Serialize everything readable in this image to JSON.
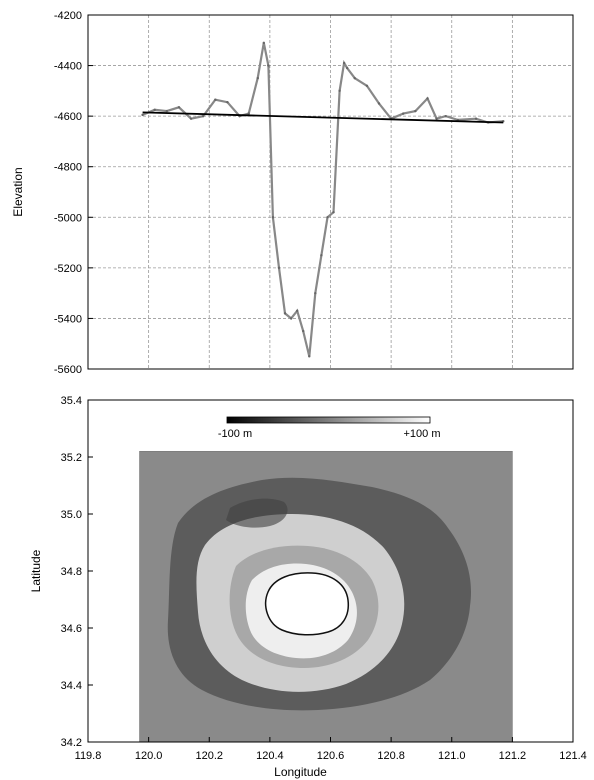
{
  "chart_data": [
    {
      "type": "line",
      "title": "",
      "xlabel": "",
      "ylabel": "Elevation",
      "xlim": [
        119.8,
        121.4
      ],
      "ylim": [
        -5600,
        -4200
      ],
      "xticks": [
        119.8,
        120.0,
        120.2,
        120.4,
        120.6,
        120.8,
        121.0,
        121.2,
        121.4
      ],
      "yticks": [
        -4200,
        -4400,
        -4600,
        -4800,
        -5000,
        -5200,
        -5400,
        -5600
      ],
      "yticklabels": [
        "-4200",
        "-4400",
        "-4600",
        "-4800",
        "-5000",
        "-5200",
        "-5400",
        "-5600"
      ],
      "grid": true,
      "series": [
        {
          "color": "#888888",
          "x": [
            119.98,
            120.02,
            120.06,
            120.1,
            120.14,
            120.18,
            120.22,
            120.26,
            120.3,
            120.33,
            120.36,
            120.38,
            120.395,
            120.41,
            120.43,
            120.45,
            120.47,
            120.49,
            120.51,
            120.53,
            120.55,
            120.57,
            120.59,
            120.61,
            120.63,
            120.645,
            120.655,
            120.68,
            120.72,
            120.76,
            120.8,
            120.84,
            120.88,
            120.92,
            120.95,
            120.98,
            121.02,
            121.08,
            121.12,
            121.17
          ],
          "y": [
            -4595,
            -4575,
            -4580,
            -4565,
            -4610,
            -4600,
            -4535,
            -4545,
            -4600,
            -4590,
            -4450,
            -4310,
            -4400,
            -5000,
            -5200,
            -5380,
            -5400,
            -5370,
            -5450,
            -5550,
            -5300,
            -5150,
            -5000,
            -4980,
            -4500,
            -4390,
            -4410,
            -4450,
            -4480,
            -4550,
            -4610,
            -4590,
            -4580,
            -4530,
            -4610,
            -4600,
            -4615,
            -4610,
            -4625,
            -4620
          ]
        },
        {
          "color": "#000000",
          "x": [
            119.98,
            121.17
          ],
          "y": [
            -4585,
            -4625
          ]
        }
      ]
    },
    {
      "type": "heatmap",
      "title": "",
      "xlabel": "Longitude",
      "ylabel": "Latitude",
      "xlim": [
        119.8,
        121.4
      ],
      "ylim": [
        34.2,
        35.4
      ],
      "xticks": [
        119.8,
        120.0,
        120.2,
        120.4,
        120.6,
        120.8,
        121.0,
        121.2,
        121.4
      ],
      "xticklabels": [
        "119.8",
        "120.0",
        "120.2",
        "120.4",
        "120.6",
        "120.8",
        "121.0",
        "121.2",
        "121.4"
      ],
      "yticks": [
        34.2,
        34.4,
        34.6,
        34.8,
        35.0,
        35.2,
        35.4
      ],
      "yticklabels": [
        "34.2",
        "34.4",
        "34.6",
        "34.8",
        "35.0",
        "35.2",
        "35.4"
      ],
      "grid": false,
      "data_extent": {
        "lon": [
          119.97,
          121.2
        ],
        "lat": [
          34.2,
          35.22
        ]
      },
      "colorbar": {
        "min_label": "-100 m",
        "max_label": "+100 m",
        "min_color": "#000000",
        "max_color": "#ffffff"
      },
      "background_color": "#8a8a8a"
    }
  ]
}
